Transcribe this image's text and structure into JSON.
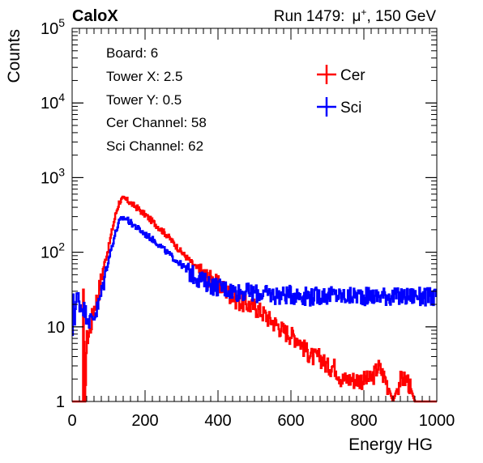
{
  "header": {
    "experiment": "CaloX",
    "run_prefix": "Run 1479:",
    "particle": "μ",
    "particle_charge": "+",
    "beam_suffix": ", 150 GeV"
  },
  "info_box": {
    "lines": [
      "Board: 6",
      "Tower X: 2.5",
      "Tower Y: 0.5",
      "Cer Channel: 58",
      "Sci Channel: 62"
    ]
  },
  "colors": {
    "cer": "#ff0000",
    "sci": "#0000ff"
  },
  "chart_data": {
    "type": "line",
    "style": "step-histogram",
    "xlabel": "Energy HG",
    "ylabel": "Counts",
    "xlim": [
      0,
      1000
    ],
    "ylim": [
      1,
      100000
    ],
    "yscale": "log",
    "grid": false,
    "legend_position": "top-right",
    "xticks": [
      {
        "value": 0,
        "label": "0"
      },
      {
        "value": 200,
        "label": "200"
      },
      {
        "value": 400,
        "label": "400"
      },
      {
        "value": 600,
        "label": "600"
      },
      {
        "value": 800,
        "label": "800"
      },
      {
        "value": 1000,
        "label": "1000"
      }
    ],
    "yticks": [
      {
        "value": 1,
        "base": "1",
        "exp": ""
      },
      {
        "value": 10,
        "base": "10",
        "exp": ""
      },
      {
        "value": 100,
        "base": "10",
        "exp": "2"
      },
      {
        "value": 1000,
        "base": "10",
        "exp": "3"
      },
      {
        "value": 10000,
        "base": "10",
        "exp": "4"
      },
      {
        "value": 100000,
        "base": "10",
        "exp": "5"
      }
    ],
    "series": [
      {
        "name": "Cer",
        "color": "#ff0000",
        "x": [
          0,
          30,
          31,
          35,
          40,
          50,
          55,
          60,
          70,
          80,
          90,
          100,
          110,
          120,
          130,
          140,
          150,
          160,
          170,
          180,
          190,
          200,
          220,
          240,
          260,
          280,
          300,
          320,
          340,
          360,
          380,
          400,
          420,
          440,
          460,
          480,
          500,
          520,
          540,
          560,
          580,
          600,
          620,
          640,
          660,
          680,
          700,
          720,
          740,
          760,
          780,
          800,
          820,
          840,
          860,
          880,
          900,
          920,
          940,
          960,
          980,
          1000
        ],
        "y": [
          1,
          1,
          26,
          1,
          7,
          9,
          14,
          18,
          26,
          45,
          75,
          115,
          200,
          330,
          480,
          520,
          500,
          460,
          420,
          390,
          350,
          320,
          260,
          210,
          170,
          130,
          100,
          80,
          62,
          52,
          45,
          38,
          32,
          26,
          22,
          20,
          19,
          16,
          13,
          11,
          9,
          8,
          7,
          5,
          4,
          4,
          3,
          3,
          2,
          2,
          2,
          2,
          2,
          3,
          2,
          1,
          2,
          2,
          1,
          1,
          1,
          1
        ]
      },
      {
        "name": "Sci",
        "color": "#0000ff",
        "x": [
          0,
          2,
          4,
          6,
          10,
          15,
          25,
          30,
          35,
          40,
          50,
          60,
          70,
          80,
          90,
          100,
          110,
          120,
          130,
          140,
          150,
          160,
          170,
          180,
          190,
          200,
          220,
          240,
          260,
          280,
          300,
          320,
          340,
          360,
          380,
          400,
          420,
          440,
          460,
          480,
          500,
          520,
          540,
          560,
          580,
          600,
          620,
          640,
          660,
          680,
          700,
          720,
          740,
          760,
          780,
          800,
          820,
          840,
          860,
          880,
          900,
          920,
          940,
          960,
          980,
          1000
        ],
        "y": [
          1,
          40,
          22,
          12,
          20,
          27,
          18,
          20,
          16,
          15,
          12,
          14,
          18,
          28,
          48,
          80,
          125,
          190,
          260,
          290,
          280,
          250,
          230,
          210,
          190,
          175,
          150,
          125,
          100,
          82,
          68,
          56,
          48,
          42,
          38,
          35,
          33,
          31,
          30,
          30,
          29,
          28,
          28,
          27,
          27,
          28,
          27,
          27,
          26,
          27,
          27,
          27,
          26,
          26,
          27,
          27,
          26,
          26,
          27,
          26,
          26,
          26,
          27,
          26,
          26,
          26
        ]
      }
    ]
  }
}
